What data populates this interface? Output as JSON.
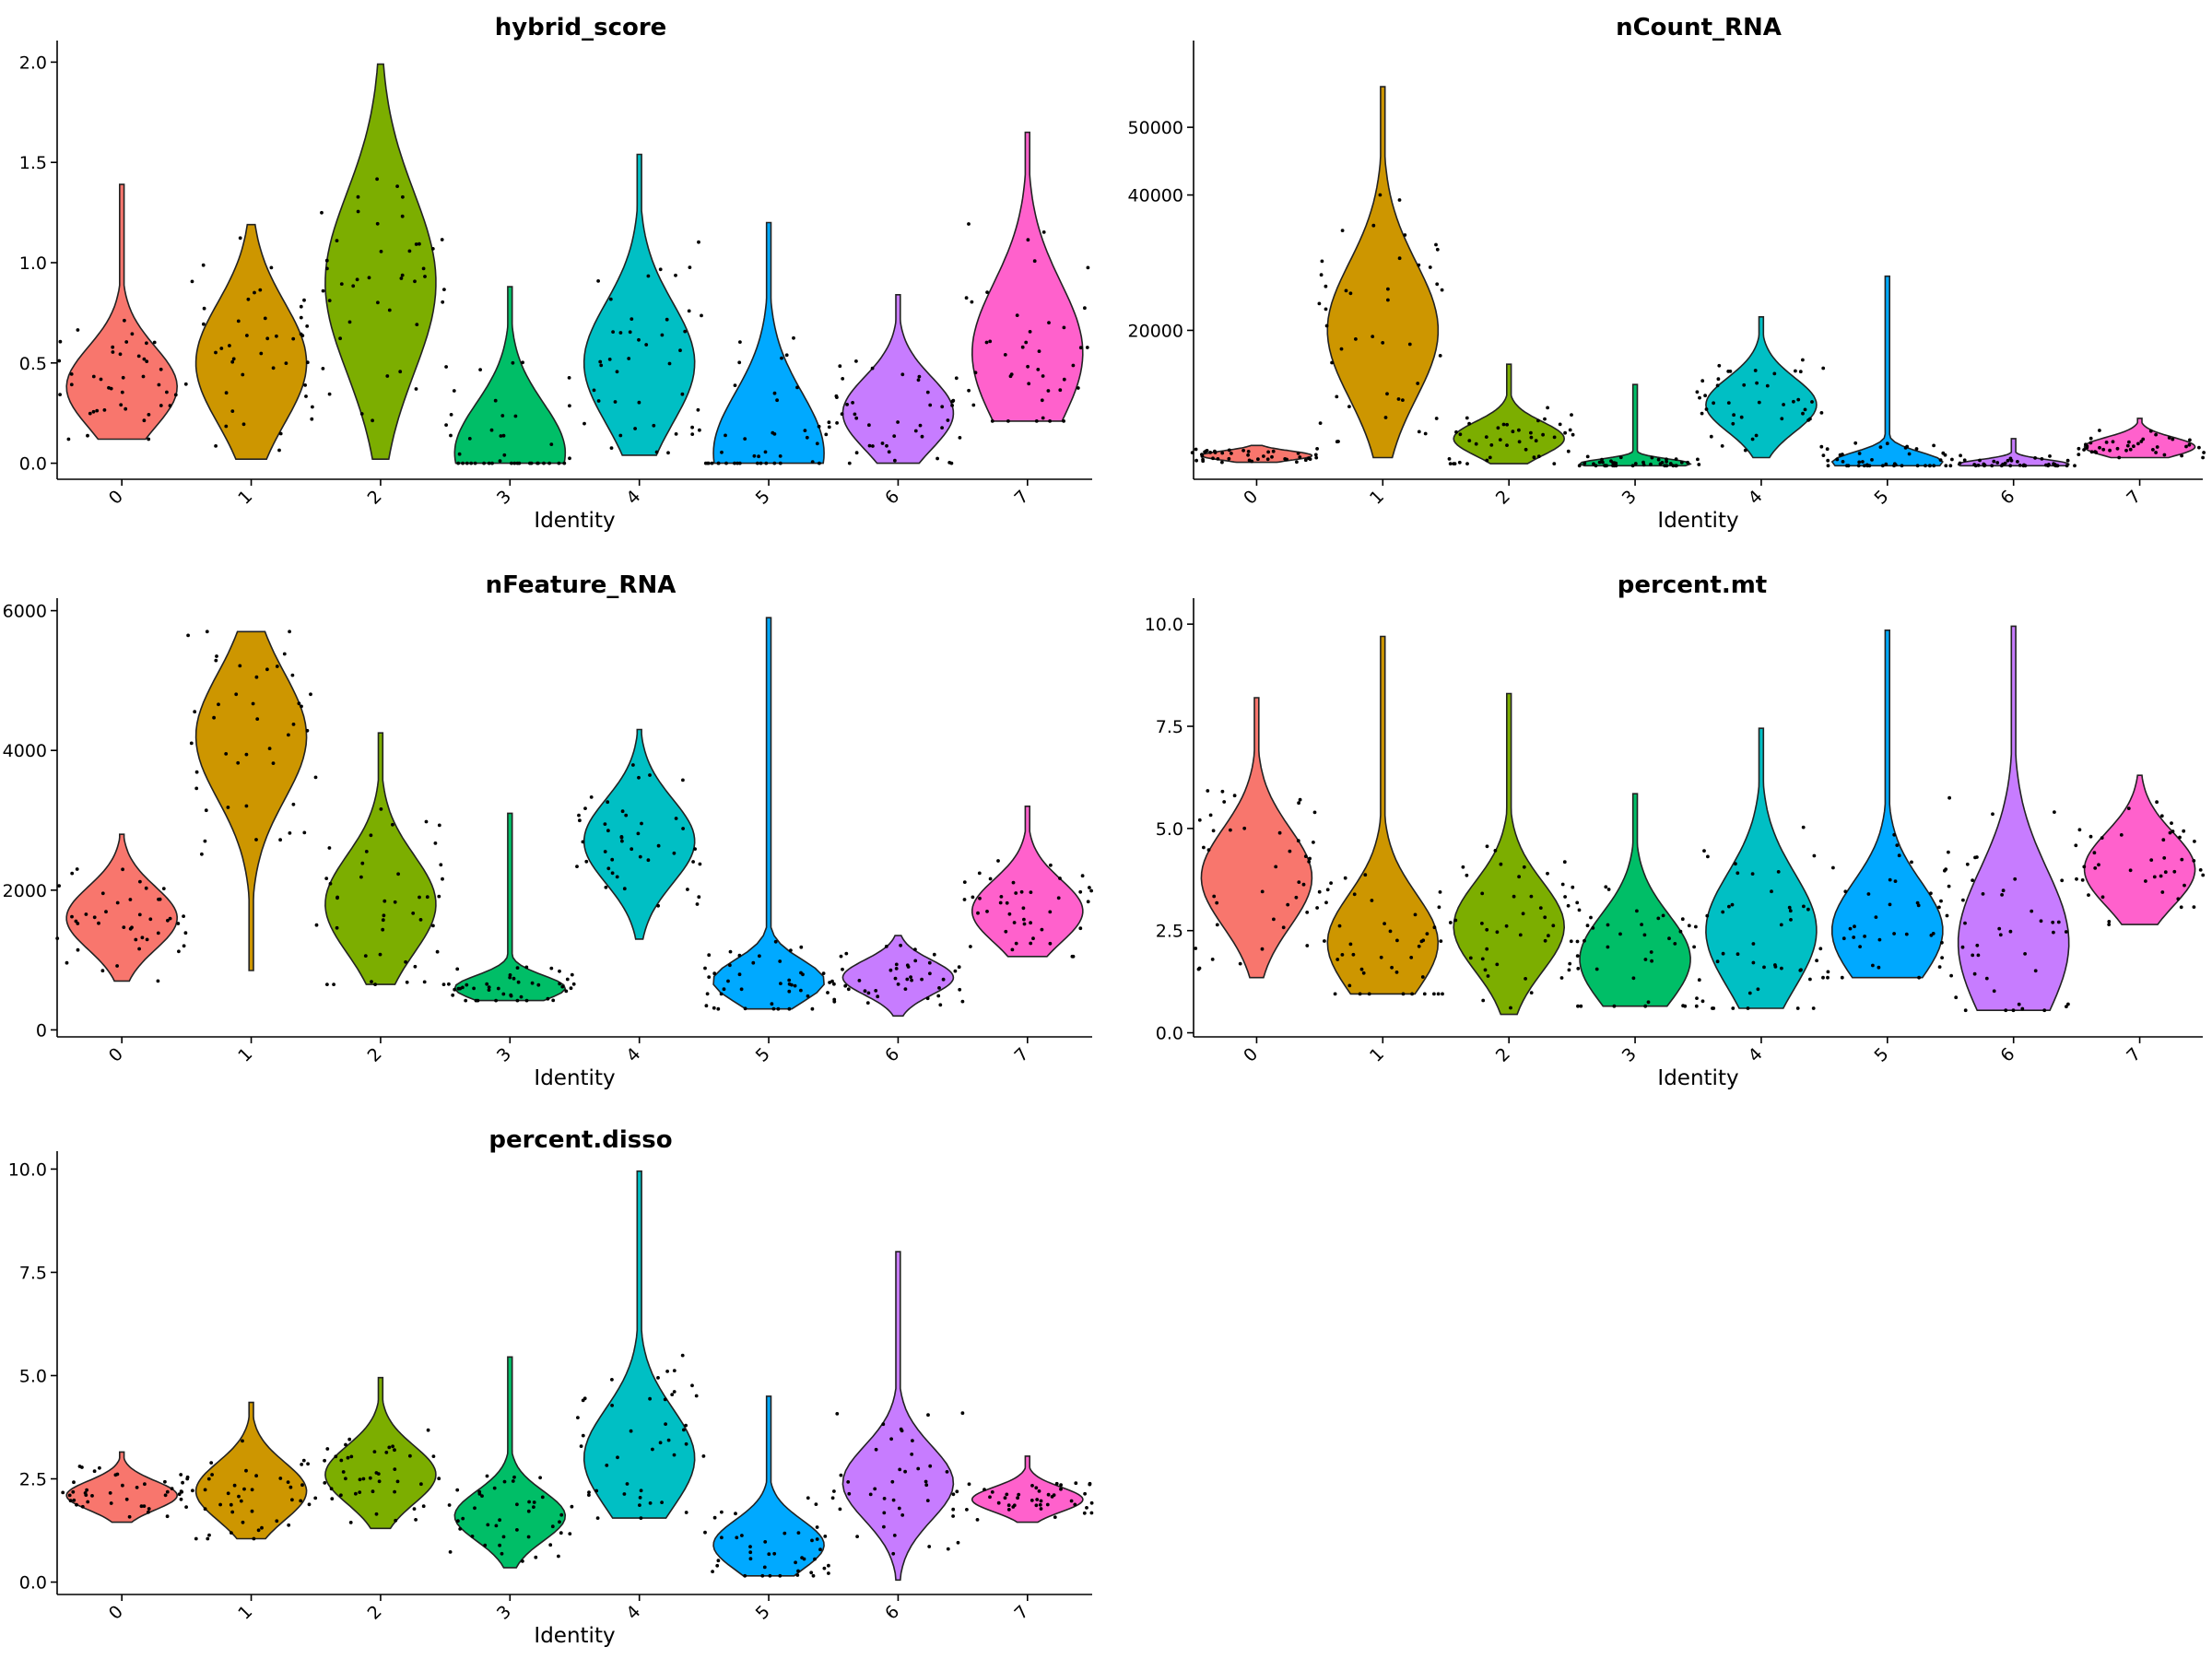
{
  "figure": {
    "xlabel": "Identity"
  },
  "colors": [
    "#F8766D",
    "#CD9600",
    "#7CAE00",
    "#00BE67",
    "#00BFC4",
    "#00A9FF",
    "#C77CFF",
    "#FF61CC"
  ],
  "chart_data": [
    {
      "type": "violin",
      "title": "hybrid_score",
      "xlabel": "Identity",
      "categories": [
        "0",
        "1",
        "2",
        "3",
        "4",
        "5",
        "6",
        "7"
      ],
      "ylim": [
        -0.08,
        2.08
      ],
      "yticks": [
        0.0,
        0.5,
        1.0,
        1.5,
        2.0
      ],
      "ytick_labels": [
        "0.0",
        "0.5",
        "1.0",
        "1.5",
        "2.0"
      ],
      "violins": [
        {
          "min": 0.12,
          "max": 1.39,
          "mode": 0.38,
          "sd": 0.2
        },
        {
          "min": 0.02,
          "max": 1.19,
          "mode": 0.5,
          "sd": 0.3
        },
        {
          "min": 0.02,
          "max": 1.99,
          "mode": 0.9,
          "sd": 0.45
        },
        {
          "min": 0.0,
          "max": 0.88,
          "mode": 0.05,
          "sd": 0.25
        },
        {
          "min": 0.04,
          "max": 1.54,
          "mode": 0.5,
          "sd": 0.3
        },
        {
          "min": 0.0,
          "max": 1.2,
          "mode": 0.05,
          "sd": 0.3
        },
        {
          "min": 0.0,
          "max": 0.84,
          "mode": 0.25,
          "sd": 0.18
        },
        {
          "min": 0.21,
          "max": 1.65,
          "mode": 0.55,
          "sd": 0.35
        }
      ]
    },
    {
      "type": "violin",
      "title": "nCount_RNA",
      "xlabel": "Identity",
      "categories": [
        "0",
        "1",
        "2",
        "3",
        "4",
        "5",
        "6",
        "7"
      ],
      "ylim": [
        -2000,
        62000
      ],
      "yticks": [
        20000,
        40000,
        50000
      ],
      "ytick_labels": [
        "20000",
        "40000",
        "50000"
      ],
      "violins": [
        {
          "min": 500,
          "max": 3000,
          "mode": 1500,
          "sd": 700
        },
        {
          "min": 1200,
          "max": 56000,
          "mode": 20000,
          "sd": 10000
        },
        {
          "min": 300,
          "max": 15000,
          "mode": 4000,
          "sd": 2500
        },
        {
          "min": 0,
          "max": 12000,
          "mode": 300,
          "sd": 700
        },
        {
          "min": 1200,
          "max": 22000,
          "mode": 9000,
          "sd": 4000
        },
        {
          "min": 0,
          "max": 28000,
          "mode": 500,
          "sd": 1500
        },
        {
          "min": 0,
          "max": 4000,
          "mode": 200,
          "sd": 700
        },
        {
          "min": 1200,
          "max": 7000,
          "mode": 2800,
          "sd": 1400
        }
      ]
    },
    {
      "type": "violin",
      "title": "nFeature_RNA",
      "xlabel": "Identity",
      "categories": [
        "0",
        "1",
        "2",
        "3",
        "4",
        "5",
        "6",
        "7"
      ],
      "ylim": [
        -100,
        6100
      ],
      "yticks": [
        0,
        2000,
        4000,
        6000
      ],
      "ytick_labels": [
        "0",
        "2000",
        "4000",
        "6000"
      ],
      "violins": [
        {
          "min": 700,
          "max": 2800,
          "mode": 1600,
          "sd": 450
        },
        {
          "min": 850,
          "max": 5700,
          "mode": 4200,
          "sd": 900
        },
        {
          "min": 650,
          "max": 4250,
          "mode": 1800,
          "sd": 700
        },
        {
          "min": 420,
          "max": 3100,
          "mode": 600,
          "sd": 180
        },
        {
          "min": 1300,
          "max": 4300,
          "mode": 2700,
          "sd": 600
        },
        {
          "min": 300,
          "max": 5900,
          "mode": 700,
          "sd": 300
        },
        {
          "min": 200,
          "max": 1350,
          "mode": 750,
          "sd": 250
        },
        {
          "min": 1050,
          "max": 3200,
          "mode": 1700,
          "sd": 450
        }
      ]
    },
    {
      "type": "violin",
      "title": "percent.mt",
      "xlabel": "Identity",
      "categories": [
        "0",
        "1",
        "2",
        "3",
        "4",
        "5",
        "6",
        "7"
      ],
      "ylim": [
        -0.1,
        10.5
      ],
      "yticks": [
        0.0,
        2.5,
        5.0,
        7.5,
        10.0
      ],
      "ytick_labels": [
        "0.0",
        "2.5",
        "5.0",
        "7.5",
        "10.0"
      ],
      "violins": [
        {
          "min": 1.35,
          "max": 8.2,
          "mode": 3.8,
          "sd": 1.2
        },
        {
          "min": 0.95,
          "max": 9.7,
          "mode": 2.2,
          "sd": 1.2
        },
        {
          "min": 0.45,
          "max": 8.3,
          "mode": 2.6,
          "sd": 1.1
        },
        {
          "min": 0.65,
          "max": 5.85,
          "mode": 1.8,
          "sd": 1.1
        },
        {
          "min": 0.6,
          "max": 7.45,
          "mode": 2.5,
          "sd": 1.4
        },
        {
          "min": 1.35,
          "max": 9.85,
          "mode": 2.5,
          "sd": 1.2
        },
        {
          "min": 0.55,
          "max": 9.95,
          "mode": 2.2,
          "sd": 1.8
        },
        {
          "min": 2.65,
          "max": 6.3,
          "mode": 4.0,
          "sd": 0.9
        }
      ]
    },
    {
      "type": "violin",
      "title": "percent.disso",
      "xlabel": "Identity",
      "categories": [
        "0",
        "1",
        "2",
        "3",
        "4",
        "5",
        "6",
        "7"
      ],
      "ylim": [
        -0.3,
        10.3
      ],
      "yticks": [
        0.0,
        2.5,
        5.0,
        7.5,
        10.0
      ],
      "ytick_labels": [
        "0.0",
        "2.5",
        "5.0",
        "7.5",
        "10.0"
      ],
      "violins": [
        {
          "min": 1.45,
          "max": 3.15,
          "mode": 2.1,
          "sd": 0.35
        },
        {
          "min": 1.05,
          "max": 4.35,
          "mode": 2.2,
          "sd": 0.7
        },
        {
          "min": 1.3,
          "max": 4.95,
          "mode": 2.6,
          "sd": 0.7
        },
        {
          "min": 0.35,
          "max": 5.45,
          "mode": 1.6,
          "sd": 0.6
        },
        {
          "min": 1.55,
          "max": 9.95,
          "mode": 3.0,
          "sd": 1.2
        },
        {
          "min": 0.15,
          "max": 4.5,
          "mode": 0.9,
          "sd": 0.6
        },
        {
          "min": 0.05,
          "max": 8.0,
          "mode": 2.4,
          "sd": 0.9
        },
        {
          "min": 1.45,
          "max": 3.05,
          "mode": 2.0,
          "sd": 0.3
        }
      ]
    }
  ]
}
